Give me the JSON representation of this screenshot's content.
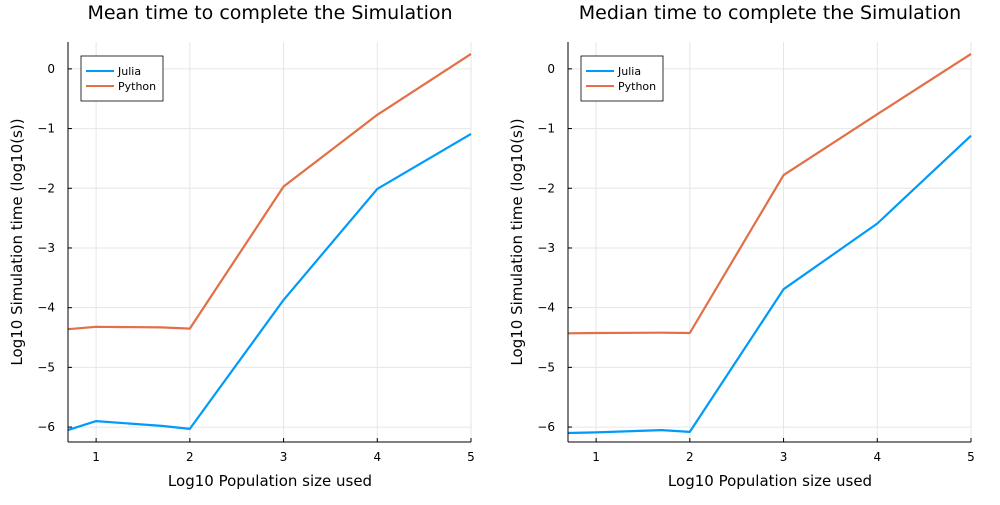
{
  "chart_data": [
    {
      "type": "line",
      "title": "Mean time to complete the Simulation",
      "xlabel": "Log10 Population size used",
      "ylabel": "Log10 Simulation time (log10(s))",
      "xlim": [
        0.7,
        5.0
      ],
      "ylim": [
        -6.25,
        0.45
      ],
      "xticks": [
        1,
        2,
        3,
        4,
        5
      ],
      "yticks": [
        0,
        -1,
        -2,
        -3,
        -4,
        -5,
        -6
      ],
      "xtick_labels": [
        "1",
        "2",
        "3",
        "4",
        "5"
      ],
      "ytick_labels": [
        "0",
        "−1",
        "−2",
        "−3",
        "−4",
        "−5",
        "−6"
      ],
      "grid": true,
      "legend_position": "top-left",
      "series": [
        {
          "name": "Julia",
          "color": "#009AFA",
          "x": [
            0.699,
            1.0,
            1.699,
            2.0,
            3.0,
            4.0,
            5.0
          ],
          "y": [
            -6.05,
            -5.9,
            -5.98,
            -6.03,
            -3.87,
            -2.01,
            -1.09
          ]
        },
        {
          "name": "Python",
          "color": "#E26F46",
          "x": [
            0.699,
            1.0,
            1.699,
            2.0,
            3.0,
            4.0,
            5.0
          ],
          "y": [
            -4.36,
            -4.32,
            -4.33,
            -4.35,
            -1.97,
            -0.77,
            0.25
          ]
        }
      ]
    },
    {
      "type": "line",
      "title": "Median time to complete the Simulation",
      "xlabel": "Log10 Population size used",
      "ylabel": "Log10 Simulation time (log10(s))",
      "xlim": [
        0.7,
        5.0
      ],
      "ylim": [
        -6.25,
        0.45
      ],
      "xticks": [
        1,
        2,
        3,
        4,
        5
      ],
      "yticks": [
        0,
        -1,
        -2,
        -3,
        -4,
        -5,
        -6
      ],
      "xtick_labels": [
        "1",
        "2",
        "3",
        "4",
        "5"
      ],
      "ytick_labels": [
        "0",
        "−1",
        "−2",
        "−3",
        "−4",
        "−5",
        "−6"
      ],
      "grid": true,
      "legend_position": "top-left",
      "series": [
        {
          "name": "Julia",
          "color": "#009AFA",
          "x": [
            0.699,
            1.0,
            1.699,
            2.0,
            3.0,
            4.0,
            5.0
          ],
          "y": [
            -6.1,
            -6.09,
            -6.05,
            -6.08,
            -3.69,
            -2.59,
            -1.12
          ]
        },
        {
          "name": "Python",
          "color": "#E26F46",
          "x": [
            0.699,
            1.0,
            1.699,
            2.0,
            3.0,
            4.0,
            5.0
          ],
          "y": [
            -4.43,
            -4.425,
            -4.42,
            -4.425,
            -1.78,
            -0.76,
            0.25
          ]
        }
      ]
    }
  ]
}
